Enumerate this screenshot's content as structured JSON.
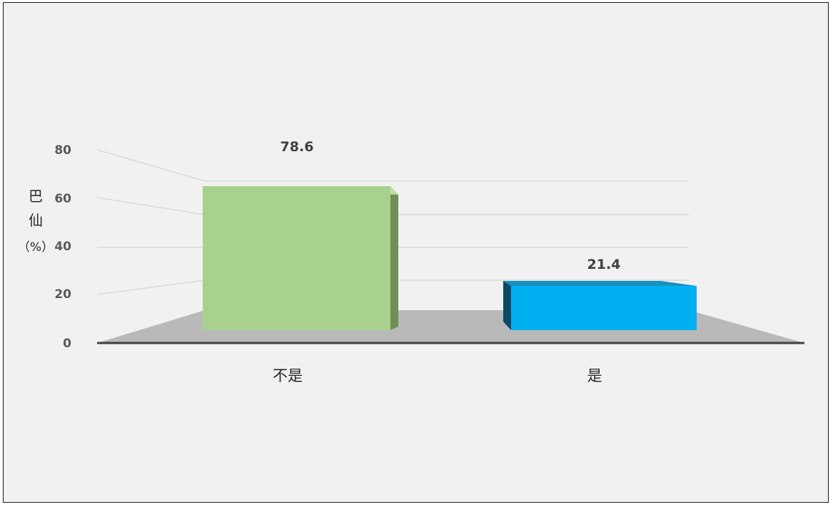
{
  "chart_data": {
    "type": "bar",
    "categories": [
      "不是",
      "是"
    ],
    "values": [
      78.6,
      21.4
    ],
    "value_labels": [
      "78.6",
      "21.4"
    ],
    "title": "",
    "xlabel": "",
    "ylabel_lines": [
      "巴",
      "仙",
      "（%）"
    ],
    "ylim": [
      0,
      80
    ],
    "yticks": [
      "0",
      "20",
      "40",
      "60",
      "80"
    ],
    "grid": true,
    "legend": "none",
    "colors": {
      "bar_0_front": "#a9d18e",
      "bar_0_side": "#6f8f55",
      "bar_1_front": "#00b0f0",
      "bar_1_side": "#0a4a66",
      "floor": "#b9b9b9",
      "axis": "#404040",
      "grid": "#d9d9d9"
    }
  }
}
